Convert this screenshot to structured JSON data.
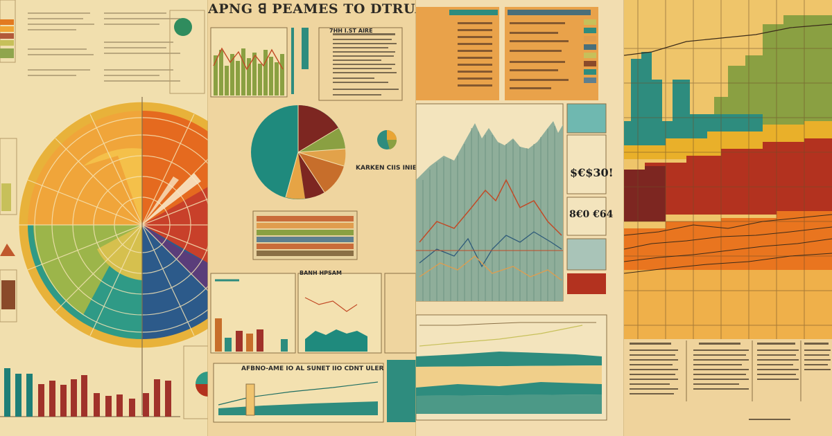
{
  "panels": {
    "p2": {
      "headline": "APNG ꓭ PEAMES TO DTRUAcanic HD INRUAC Coohr",
      "subtitle_center": "AFBNO-AME IO AL SUNET IIO CDNT ULER",
      "subtitle_right": "KARKEN CIIS INIEE V",
      "mini_heading_a": "7HH I.ST AIRE",
      "mini_heading_b": "BANH HPSAM"
    },
    "p3": {
      "stat_top": "$€$30!",
      "stat_bottom": "8€0 €64"
    }
  },
  "colors": {
    "paper": "#f1dfae",
    "teal": "#1f8a7d",
    "orange": "#e9751f",
    "red": "#b3321f",
    "maroon": "#7d2621",
    "mustard": "#e9b02a",
    "olive": "#8aa042"
  }
}
